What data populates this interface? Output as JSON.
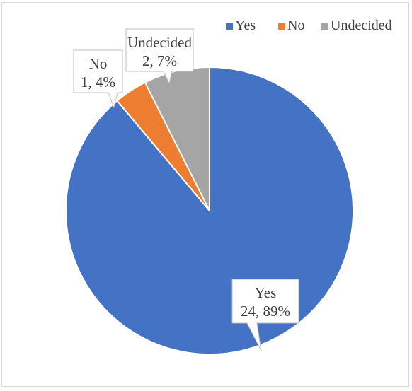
{
  "chart_data": {
    "type": "pie",
    "title": "",
    "slices": [
      {
        "label": "Yes",
        "value": 24,
        "percent": "89%",
        "data_label": "24, 89%",
        "color": "#4472c4"
      },
      {
        "label": "No",
        "value": 1,
        "percent": "4%",
        "data_label": "1, 4%",
        "color": "#ed7d31"
      },
      {
        "label": "Undecided",
        "value": 2,
        "percent": "7%",
        "data_label": "2, 7%",
        "color": "#a5a5a5"
      }
    ],
    "start_angle_deg": 0,
    "direction": "clockwise",
    "legend": {
      "position": "top-right",
      "entries": [
        "Yes",
        "No",
        "Undecided"
      ]
    }
  }
}
